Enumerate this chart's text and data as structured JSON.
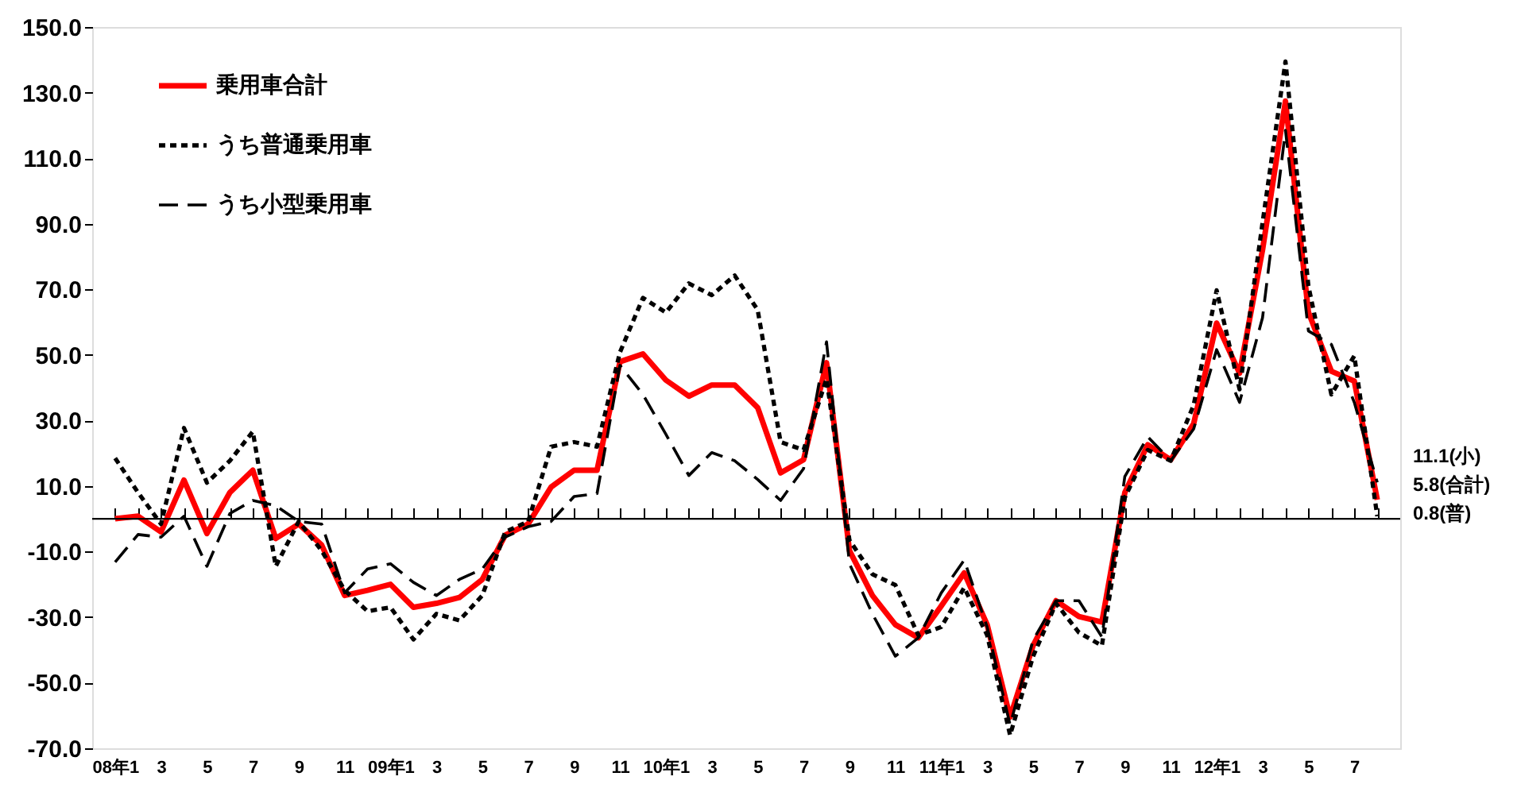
{
  "chart_data": {
    "type": "line",
    "categories": [
      "08年1",
      null,
      "3",
      null,
      "5",
      null,
      "7",
      null,
      "9",
      null,
      "11",
      null,
      "09年1",
      null,
      "3",
      null,
      "5",
      null,
      "7",
      null,
      "9",
      null,
      "11",
      null,
      "10年1",
      null,
      "3",
      null,
      "5",
      null,
      "7",
      null,
      "9",
      null,
      "11",
      null,
      "11年1",
      null,
      "3",
      null,
      "5",
      null,
      "7",
      null,
      "9",
      null,
      "11",
      null,
      "12年1",
      null,
      "3",
      null,
      "5",
      null,
      "7",
      null
    ],
    "series": [
      {
        "name": "乗用車合計",
        "color": "#ff0000",
        "line_style": "solid",
        "values": [
          0.0,
          0.8,
          -4,
          11.8,
          -4.5,
          8,
          14.8,
          -6,
          -1.6,
          -8,
          -23.4,
          -21.8,
          -20,
          -27,
          -25.8,
          -24,
          -18.5,
          -5,
          -1.6,
          9.7,
          14.8,
          14.8,
          47.9,
          50.3,
          42.3,
          37.4,
          40.8,
          40.8,
          33.9,
          14,
          18,
          47.6,
          -9.7,
          -23.4,
          -32.3,
          -36.3,
          -26.6,
          -16.5,
          -32.3,
          -60.5,
          -38.7,
          -25,
          -29.8,
          -31.5,
          8,
          22.6,
          18,
          29,
          59.7,
          44.4,
          82,
          127.4,
          63,
          45,
          42,
          5.8
        ]
      },
      {
        "name": "うち普通乗用車",
        "color": "#000000",
        "line_style": "dotted",
        "values": [
          18.5,
          8,
          -1.6,
          27.7,
          11,
          17.7,
          26.6,
          -14.5,
          -0.8,
          -9.7,
          -21.8,
          -28.2,
          -27,
          -36.8,
          -29,
          -31,
          -23.4,
          -4,
          -0.8,
          22,
          23.4,
          22,
          50.8,
          67.4,
          62.9,
          71.8,
          68.2,
          74.2,
          63.7,
          23.4,
          21,
          42.7,
          -6.5,
          -16.9,
          -20.2,
          -35.5,
          -33,
          -21,
          -35.5,
          -66,
          -42,
          -25.8,
          -34.7,
          -38.7,
          6.5,
          21,
          17.7,
          34.7,
          69.7,
          39.5,
          90.3,
          139.5,
          71,
          37.9,
          49.7,
          0.8
        ]
      },
      {
        "name": "うち小型乗用車",
        "color": "#000000",
        "line_style": "dashed",
        "values": [
          -13.2,
          -4.8,
          -5.6,
          0.8,
          -14.5,
          1.6,
          5.6,
          4,
          -0.8,
          -1.6,
          -22.6,
          -15.3,
          -13.7,
          -19.4,
          -23.4,
          -18.5,
          -15.3,
          -5.6,
          -2.4,
          -0.8,
          6.8,
          7.7,
          46.8,
          37.9,
          25.8,
          13.2,
          20.2,
          17.7,
          12,
          5.6,
          15.3,
          54,
          -13.7,
          -29,
          -41.9,
          -36.3,
          -22.6,
          -12.6,
          -33,
          -62.9,
          -37,
          -25,
          -25,
          -36,
          12.9,
          25,
          17.7,
          27.4,
          51.6,
          35.5,
          61.3,
          118.5,
          57.3,
          53.2,
          35.5,
          11.1
        ]
      }
    ],
    "ylim": [
      -70,
      150
    ],
    "yticks": [
      {
        "value": -70,
        "label": "-70.0"
      },
      {
        "value": -50,
        "label": "-50.0"
      },
      {
        "value": -30,
        "label": "-30.0"
      },
      {
        "value": -10,
        "label": "-10.0"
      },
      {
        "value": 10,
        "label": "10.0"
      },
      {
        "value": 30,
        "label": "30.0"
      },
      {
        "value": 50,
        "label": "50.0"
      },
      {
        "value": 70,
        "label": "70.0"
      },
      {
        "value": 90,
        "label": "90.0"
      },
      {
        "value": 110,
        "label": "110.0"
      },
      {
        "value": 130,
        "label": "130.0"
      },
      {
        "value": 150,
        "label": "150.0"
      }
    ],
    "ref_lines": [
      {
        "axis": "y",
        "value": 0,
        "color": "#000000"
      }
    ],
    "annotations": [
      "11.1(小)",
      "5.8(合計)",
      "0.8(普)"
    ],
    "grid": false,
    "marker": "none",
    "legend": "top left"
  }
}
